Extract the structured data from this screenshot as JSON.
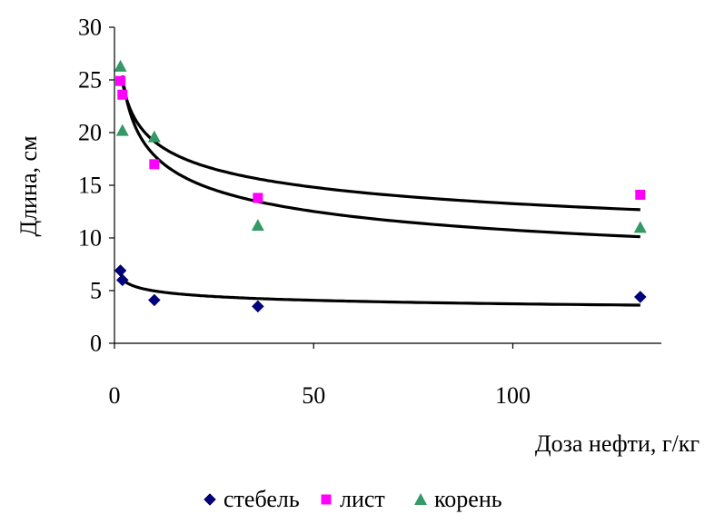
{
  "chart_data": {
    "type": "scatter",
    "xlabel": "Доза нефти, г/кг",
    "ylabel": "Длина, см",
    "xlim": [
      0,
      130
    ],
    "ylim": [
      0,
      30
    ],
    "x_ticks": [
      0,
      50,
      100
    ],
    "y_ticks": [
      0,
      5,
      10,
      15,
      20,
      25,
      30
    ],
    "grid": false,
    "legend_position": "bottom",
    "series": [
      {
        "name": "стебель",
        "marker": "diamond",
        "color": "#000080",
        "points": [
          {
            "x": 1.5,
            "y": 6.9
          },
          {
            "x": 2.0,
            "y": 6.0
          },
          {
            "x": 10.0,
            "y": 4.1
          },
          {
            "x": 36.0,
            "y": 3.5
          },
          {
            "x": 132.0,
            "y": 4.4
          }
        ]
      },
      {
        "name": "лист",
        "marker": "square",
        "color": "#FF00FF",
        "points": [
          {
            "x": 1.5,
            "y": 24.9
          },
          {
            "x": 2.0,
            "y": 23.6
          },
          {
            "x": 10.0,
            "y": 17.0
          },
          {
            "x": 36.0,
            "y": 13.8
          },
          {
            "x": 132.0,
            "y": 14.1
          }
        ]
      },
      {
        "name": "корень",
        "marker": "triangle",
        "color": "#339966",
        "points": [
          {
            "x": 1.5,
            "y": 26.3
          },
          {
            "x": 2.0,
            "y": 20.2
          },
          {
            "x": 10.0,
            "y": 19.6
          },
          {
            "x": 36.0,
            "y": 11.2
          },
          {
            "x": 132.0,
            "y": 11.0
          }
        ]
      }
    ],
    "trendlines": [
      {
        "series": "стебель",
        "type": "power",
        "color": "#000000",
        "x_range": [
          2,
          132
        ],
        "a": 6.6,
        "b": -0.123
      },
      {
        "series": "лист",
        "type": "power",
        "color": "#000000",
        "x_range": [
          2,
          132
        ],
        "a": 27.7,
        "b": -0.16
      },
      {
        "series": "корень",
        "type": "power",
        "color": "#000000",
        "x_range": [
          2,
          132
        ],
        "a": 29.6,
        "b": -0.22
      }
    ]
  }
}
